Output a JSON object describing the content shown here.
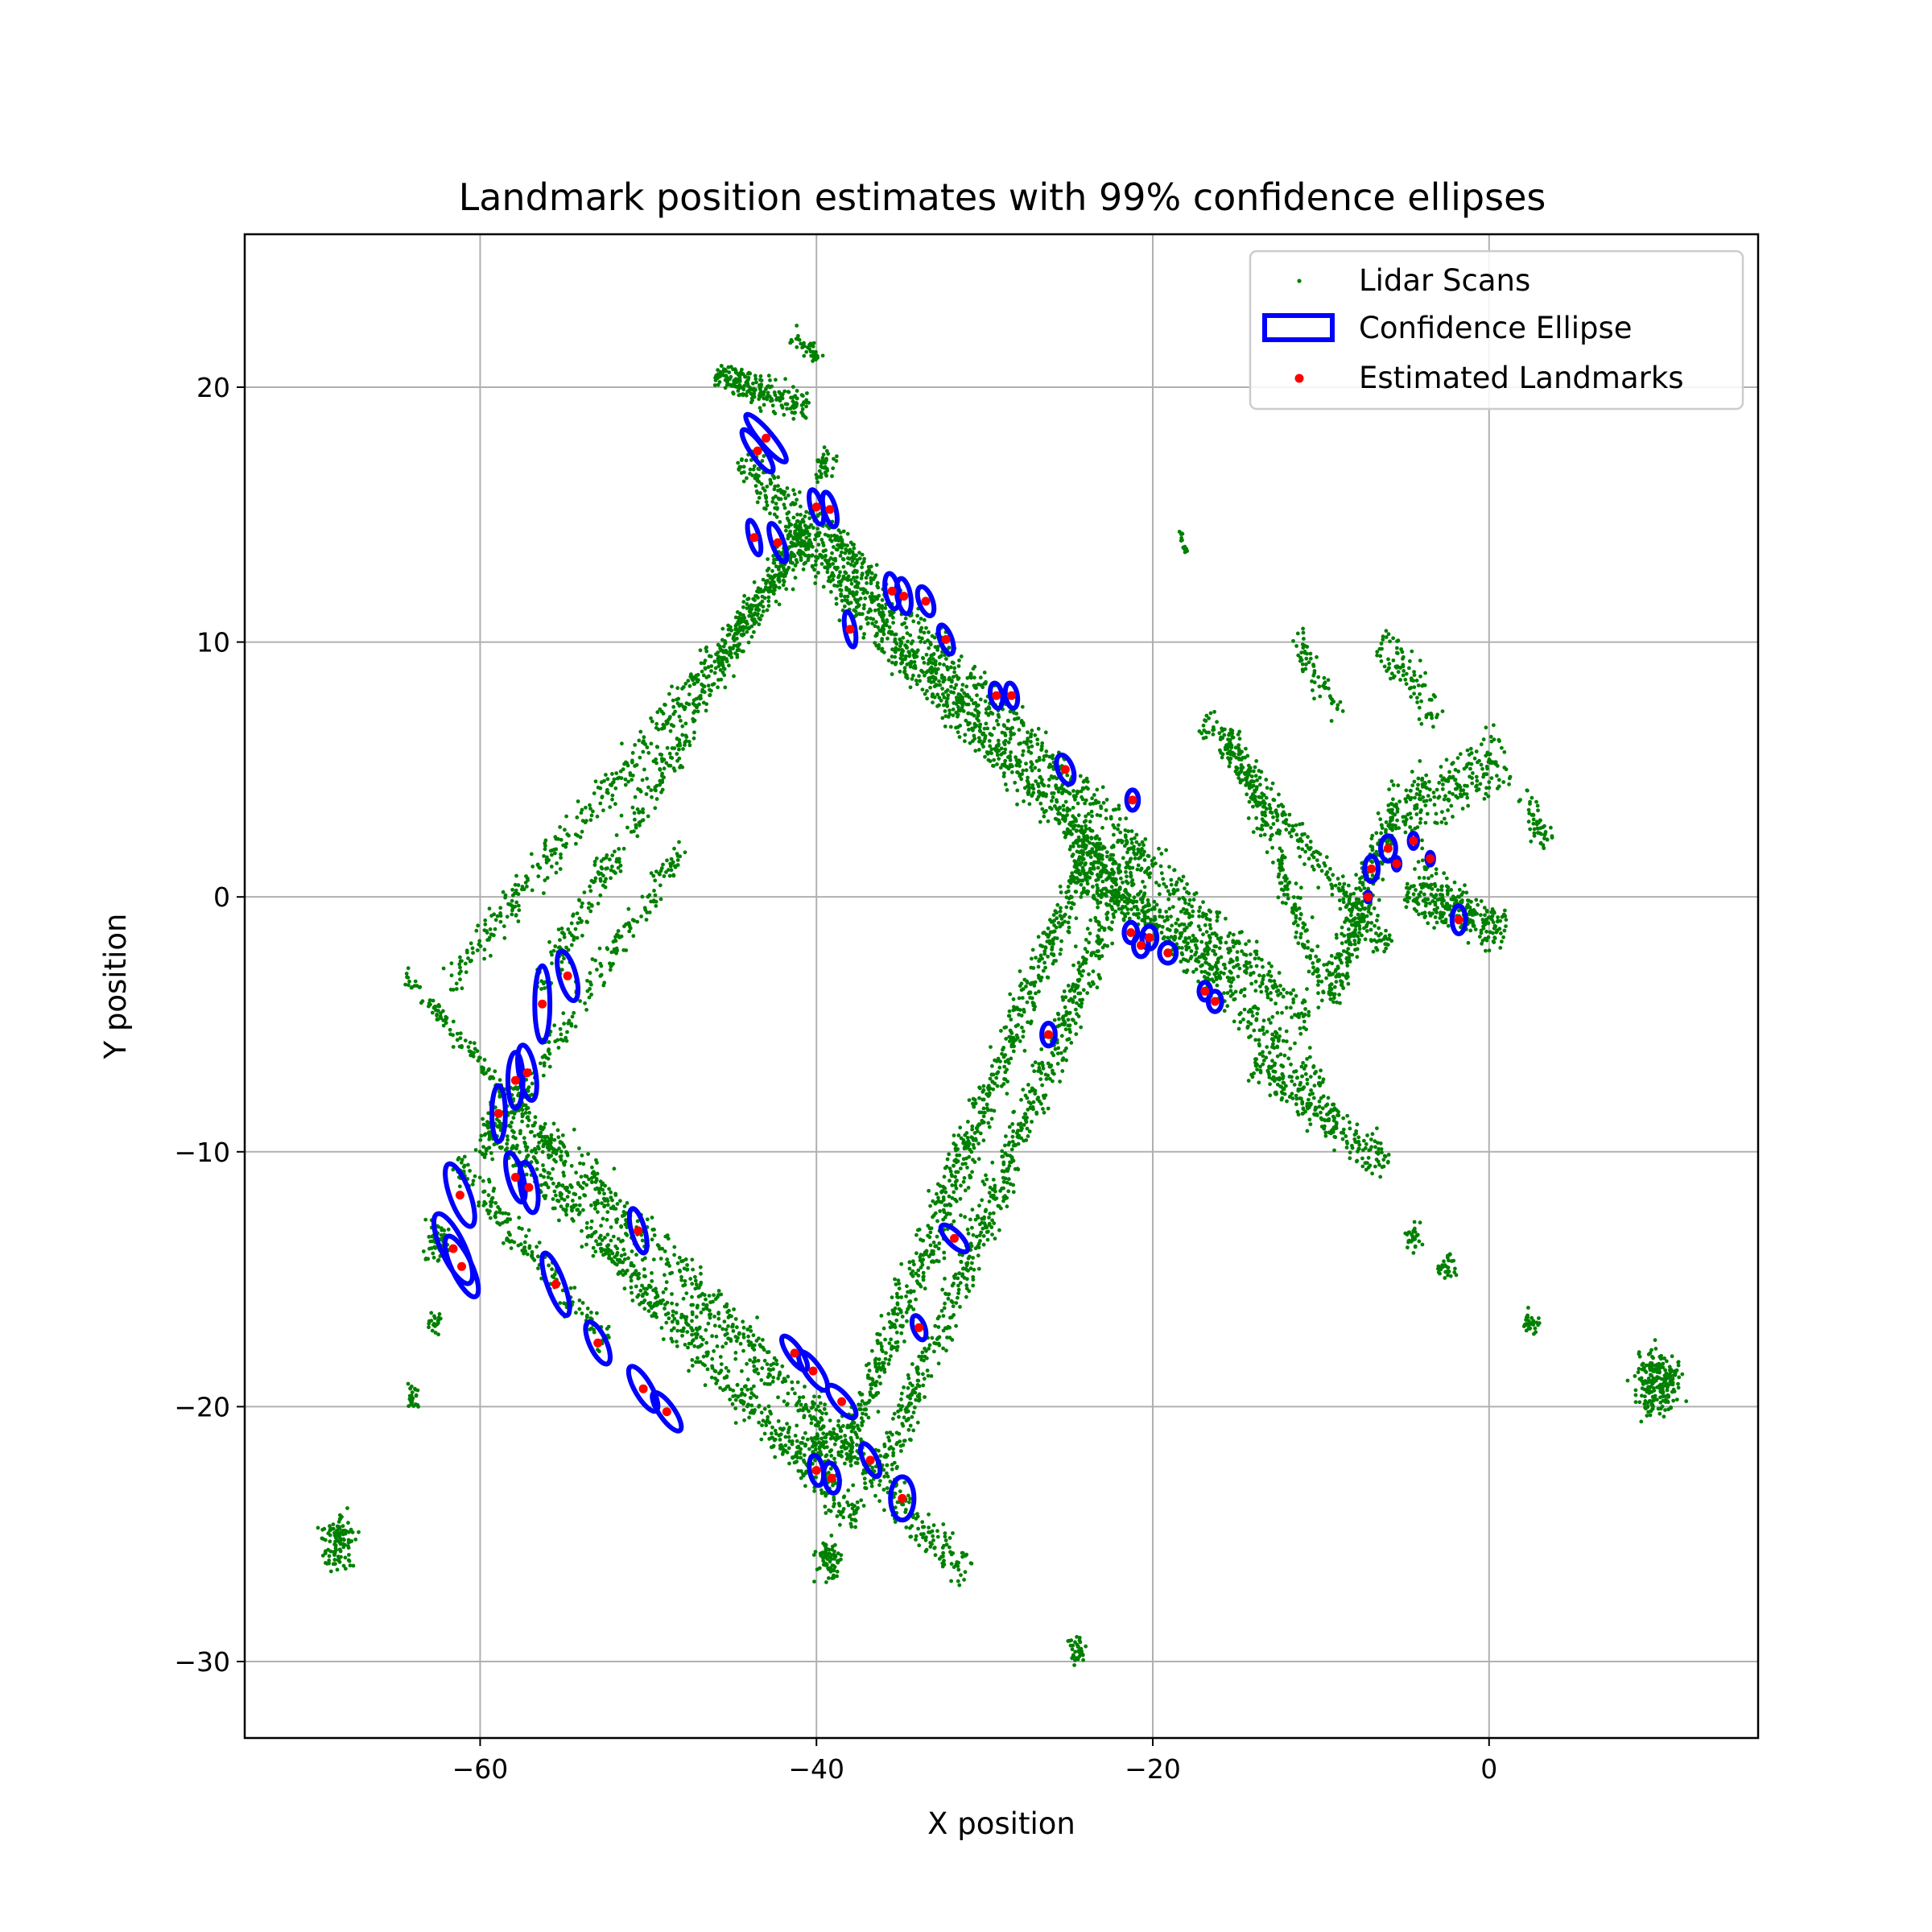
{
  "chart_data": {
    "type": "scatter",
    "title": "Landmark position estimates with 99% confidence ellipses",
    "xlabel": "X position",
    "ylabel": "Y position",
    "xlim": [
      -74,
      16
    ],
    "ylim": [
      -33,
      26
    ],
    "xticks": [
      -60,
      -40,
      -20,
      0
    ],
    "xtick_labels": [
      "−60",
      "−40",
      "−20",
      "0"
    ],
    "yticks": [
      -30,
      -20,
      -10,
      0,
      10,
      20
    ],
    "ytick_labels": [
      "−30",
      "−20",
      "−10",
      "0",
      "10",
      "20"
    ],
    "grid": true,
    "legend_position": "top-right",
    "legend": [
      {
        "label": "Lidar Scans",
        "kind": "scatter"
      },
      {
        "label": "Confidence Ellipse",
        "kind": "ellipse"
      },
      {
        "label": "Estimated Landmarks",
        "kind": "point"
      }
    ],
    "colors": {
      "lidar": "#008000",
      "ellipse": "#0000ff",
      "landmark": "#ff0000"
    },
    "lidar_segments": [
      {
        "from": [
          -62,
          -3.4
        ],
        "to": [
          -40,
          14.2
        ],
        "spread": 0.7,
        "n": 420
      },
      {
        "from": [
          -56.5,
          -3.7
        ],
        "to": [
          -41.5,
          13.8
        ],
        "spread": 0.7,
        "n": 360
      },
      {
        "from": [
          -46,
          8.8
        ],
        "to": [
          -40.7,
          14.7
        ],
        "spread": 0.5,
        "n": 120
      },
      {
        "from": [
          -60,
          -10.2
        ],
        "to": [
          -48,
          2
        ],
        "spread": 0.6,
        "n": 220
      },
      {
        "from": [
          -44.5,
          17.3
        ],
        "to": [
          -10.5,
          -5
        ],
        "spread": 0.8,
        "n": 820
      },
      {
        "from": [
          -42,
          14.3
        ],
        "to": [
          -10,
          -7.5
        ],
        "spread": 0.8,
        "n": 760
      },
      {
        "from": [
          -43.5,
          16
        ],
        "to": [
          -22,
          1
        ],
        "spread": 0.6,
        "n": 320
      },
      {
        "from": [
          -59.7,
          -8.5
        ],
        "to": [
          -37.5,
          -24.5
        ],
        "spread": 0.8,
        "n": 700
      },
      {
        "from": [
          -56.5,
          -9
        ],
        "to": [
          -31,
          -26.5
        ],
        "spread": 0.8,
        "n": 620
      },
      {
        "from": [
          -64.5,
          -3
        ],
        "to": [
          -55.5,
          -10
        ],
        "spread": 0.4,
        "n": 160
      },
      {
        "from": [
          -61.5,
          -10.5
        ],
        "to": [
          -52.5,
          -17.5
        ],
        "spread": 0.6,
        "n": 180
      },
      {
        "from": [
          -38.5,
          -22
        ],
        "to": [
          -23.5,
          2.5
        ],
        "spread": 0.8,
        "n": 760
      },
      {
        "from": [
          -36,
          -22.5
        ],
        "to": [
          -21,
          2
        ],
        "spread": 0.8,
        "n": 660
      },
      {
        "from": [
          -25,
          1
        ],
        "to": [
          -15,
          -3
        ],
        "spread": 0.7,
        "n": 260
      },
      {
        "from": [
          -17,
          7
        ],
        "to": [
          -6,
          -2
        ],
        "spread": 0.6,
        "n": 280
      },
      {
        "from": [
          -15.5,
          6.5
        ],
        "to": [
          -9.5,
          -4
        ],
        "spread": 0.6,
        "n": 220
      },
      {
        "from": [
          -9.5,
          -4
        ],
        "to": [
          -6,
          3
        ],
        "spread": 0.7,
        "n": 260
      },
      {
        "from": [
          -6,
          3
        ],
        "to": [
          1,
          5.5
        ],
        "spread": 1.2,
        "n": 240
      },
      {
        "from": [
          -5,
          0
        ],
        "to": [
          1,
          -1.2
        ],
        "spread": 0.8,
        "n": 160
      },
      {
        "from": [
          -14,
          -6.5
        ],
        "to": [
          -6,
          -10.5
        ],
        "spread": 0.8,
        "n": 240
      },
      {
        "from": [
          -6.5,
          10
        ],
        "to": [
          -3,
          7
        ],
        "spread": 0.8,
        "n": 90
      },
      {
        "from": [
          -11.5,
          10.3
        ],
        "to": [
          -9,
          7
        ],
        "spread": 0.6,
        "n": 60
      },
      {
        "from": [
          -46,
          20.5
        ],
        "to": [
          -40.5,
          19.2
        ],
        "spread": 0.6,
        "n": 220
      },
      {
        "from": [
          -41.5,
          22
        ],
        "to": [
          -39.5,
          21
        ],
        "spread": 0.4,
        "n": 40
      },
      {
        "from": [
          -40,
          15
        ],
        "to": [
          -36.5,
          12.5
        ],
        "spread": 0.4,
        "n": 60
      },
      {
        "from": [
          -18.5,
          14.5
        ],
        "to": [
          -18,
          13.5
        ],
        "spread": 0.2,
        "n": 15
      },
      {
        "from": [
          -4.5,
          1
        ],
        "to": [
          0.5,
          -1.5
        ],
        "spread": 0.8,
        "n": 120
      },
      {
        "from": [
          2,
          4
        ],
        "to": [
          3.5,
          2
        ],
        "spread": 0.5,
        "n": 50
      }
    ],
    "lidar_clusters": [
      {
        "center": [
          -68.5,
          -25.3
        ],
        "spread": 1.0,
        "n": 110
      },
      {
        "center": [
          -62.5,
          -13.5
        ],
        "spread": 0.8,
        "n": 60
      },
      {
        "center": [
          -64,
          -19.6
        ],
        "spread": 0.4,
        "n": 25
      },
      {
        "center": [
          -62.7,
          -16.8
        ],
        "spread": 0.4,
        "n": 20
      },
      {
        "center": [
          -24.5,
          -29.5
        ],
        "spread": 0.6,
        "n": 35
      },
      {
        "center": [
          10,
          -19
        ],
        "spread": 1.3,
        "n": 220
      },
      {
        "center": [
          -2.5,
          -14.5
        ],
        "spread": 0.5,
        "n": 30
      },
      {
        "center": [
          -4.5,
          -13.3
        ],
        "spread": 0.5,
        "n": 30
      },
      {
        "center": [
          2.5,
          -16.7
        ],
        "spread": 0.5,
        "n": 30
      },
      {
        "center": [
          -39.2,
          -26
        ],
        "spread": 0.8,
        "n": 70
      },
      {
        "center": [
          -39.8,
          -21.5
        ],
        "spread": 0.8,
        "n": 60
      },
      {
        "center": [
          -39.5,
          17
        ],
        "spread": 0.6,
        "n": 40
      }
    ],
    "landmarks": [
      {
        "x": -43,
        "y": 18,
        "rx": 0.4,
        "ry": 1.2,
        "angle": 40
      },
      {
        "x": -43.5,
        "y": 17.5,
        "rx": 0.4,
        "ry": 1.0,
        "angle": 35
      },
      {
        "x": -40,
        "y": 15.3,
        "rx": 0.35,
        "ry": 0.7,
        "angle": 15
      },
      {
        "x": -39.2,
        "y": 15.2,
        "rx": 0.35,
        "ry": 0.7,
        "angle": 15
      },
      {
        "x": -43.7,
        "y": 14.1,
        "rx": 0.3,
        "ry": 0.7,
        "angle": 15
      },
      {
        "x": -42.3,
        "y": 13.9,
        "rx": 0.35,
        "ry": 0.8,
        "angle": 20
      },
      {
        "x": -35.5,
        "y": 12,
        "rx": 0.4,
        "ry": 0.7,
        "angle": 10
      },
      {
        "x": -34.8,
        "y": 11.8,
        "rx": 0.4,
        "ry": 0.7,
        "angle": 10
      },
      {
        "x": -33.5,
        "y": 11.6,
        "rx": 0.4,
        "ry": 0.6,
        "angle": 20
      },
      {
        "x": -38,
        "y": 10.5,
        "rx": 0.3,
        "ry": 0.7,
        "angle": 10
      },
      {
        "x": -32.3,
        "y": 10.1,
        "rx": 0.35,
        "ry": 0.6,
        "angle": 20
      },
      {
        "x": -29.3,
        "y": 7.9,
        "rx": 0.35,
        "ry": 0.5,
        "angle": 10
      },
      {
        "x": -28.4,
        "y": 7.9,
        "rx": 0.35,
        "ry": 0.5,
        "angle": 10
      },
      {
        "x": -25.2,
        "y": 5,
        "rx": 0.45,
        "ry": 0.6,
        "angle": 20
      },
      {
        "x": -21.2,
        "y": 3.8,
        "rx": 0.35,
        "ry": 0.4,
        "angle": 0
      },
      {
        "x": -7,
        "y": 1.1,
        "rx": 0.4,
        "ry": 0.5,
        "angle": 0
      },
      {
        "x": -6,
        "y": 1.9,
        "rx": 0.45,
        "ry": 0.5,
        "angle": 0
      },
      {
        "x": -5.5,
        "y": 1.3,
        "rx": 0.2,
        "ry": 0.25,
        "angle": 0
      },
      {
        "x": -4.5,
        "y": 2.2,
        "rx": 0.25,
        "ry": 0.3,
        "angle": 0
      },
      {
        "x": -3.5,
        "y": 1.5,
        "rx": 0.2,
        "ry": 0.25,
        "angle": 0
      },
      {
        "x": -7.2,
        "y": 0,
        "rx": 0.15,
        "ry": 0.2,
        "angle": 0
      },
      {
        "x": -1.8,
        "y": -0.9,
        "rx": 0.4,
        "ry": 0.55,
        "angle": 0
      },
      {
        "x": -21.3,
        "y": -1.4,
        "rx": 0.4,
        "ry": 0.4,
        "angle": 0
      },
      {
        "x": -20.7,
        "y": -1.9,
        "rx": 0.45,
        "ry": 0.45,
        "angle": 0
      },
      {
        "x": -20.2,
        "y": -1.6,
        "rx": 0.45,
        "ry": 0.45,
        "angle": 0
      },
      {
        "x": -19.1,
        "y": -2.2,
        "rx": 0.5,
        "ry": 0.4,
        "angle": 0
      },
      {
        "x": -16.9,
        "y": -3.7,
        "rx": 0.35,
        "ry": 0.35,
        "angle": 0
      },
      {
        "x": -16.3,
        "y": -4.1,
        "rx": 0.4,
        "ry": 0.4,
        "angle": 0
      },
      {
        "x": -26.2,
        "y": -5.4,
        "rx": 0.4,
        "ry": 0.45,
        "angle": 0
      },
      {
        "x": -56.3,
        "y": -4.2,
        "rx": 0.45,
        "ry": 1.5,
        "angle": 0
      },
      {
        "x": -54.8,
        "y": -3.1,
        "rx": 0.5,
        "ry": 1.0,
        "angle": 15
      },
      {
        "x": -57.9,
        "y": -7.2,
        "rx": 0.45,
        "ry": 1.1,
        "angle": 0
      },
      {
        "x": -57.2,
        "y": -6.9,
        "rx": 0.5,
        "ry": 1.1,
        "angle": 10
      },
      {
        "x": -58.9,
        "y": -8.5,
        "rx": 0.4,
        "ry": 1.1,
        "angle": 0
      },
      {
        "x": -61.2,
        "y": -11.7,
        "rx": 0.6,
        "ry": 1.3,
        "angle": 20
      },
      {
        "x": -57.9,
        "y": -11,
        "rx": 0.45,
        "ry": 1.0,
        "angle": 15
      },
      {
        "x": -57.1,
        "y": -11.4,
        "rx": 0.5,
        "ry": 1.0,
        "angle": 10
      },
      {
        "x": -61.6,
        "y": -13.8,
        "rx": 0.7,
        "ry": 1.5,
        "angle": 25
      },
      {
        "x": -61.1,
        "y": -14.5,
        "rx": 0.6,
        "ry": 1.3,
        "angle": 25
      },
      {
        "x": -50.6,
        "y": -13.1,
        "rx": 0.4,
        "ry": 0.9,
        "angle": 15
      },
      {
        "x": -55.5,
        "y": -15.2,
        "rx": 0.5,
        "ry": 1.3,
        "angle": 20
      },
      {
        "x": -31.8,
        "y": -13.4,
        "rx": 0.4,
        "ry": 0.7,
        "angle": 45
      },
      {
        "x": -53,
        "y": -17.5,
        "rx": 0.5,
        "ry": 0.9,
        "angle": 25
      },
      {
        "x": -33.9,
        "y": -16.9,
        "rx": 0.35,
        "ry": 0.5,
        "angle": 20
      },
      {
        "x": -41.3,
        "y": -17.9,
        "rx": 0.4,
        "ry": 0.8,
        "angle": 35
      },
      {
        "x": -40.2,
        "y": -18.6,
        "rx": 0.45,
        "ry": 0.9,
        "angle": 35
      },
      {
        "x": -50.3,
        "y": -19.3,
        "rx": 0.5,
        "ry": 1.0,
        "angle": 30
      },
      {
        "x": -48.9,
        "y": -20.2,
        "rx": 0.45,
        "ry": 0.9,
        "angle": 35
      },
      {
        "x": -38.5,
        "y": -19.8,
        "rx": 0.45,
        "ry": 0.8,
        "angle": 40
      },
      {
        "x": -36.8,
        "y": -22.1,
        "rx": 0.4,
        "ry": 0.7,
        "angle": 25
      },
      {
        "x": -40,
        "y": -22.5,
        "rx": 0.4,
        "ry": 0.6,
        "angle": 10
      },
      {
        "x": -39.1,
        "y": -22.8,
        "rx": 0.45,
        "ry": 0.6,
        "angle": 10
      },
      {
        "x": -34.9,
        "y": -23.6,
        "rx": 0.7,
        "ry": 0.85,
        "angle": 0
      }
    ]
  }
}
